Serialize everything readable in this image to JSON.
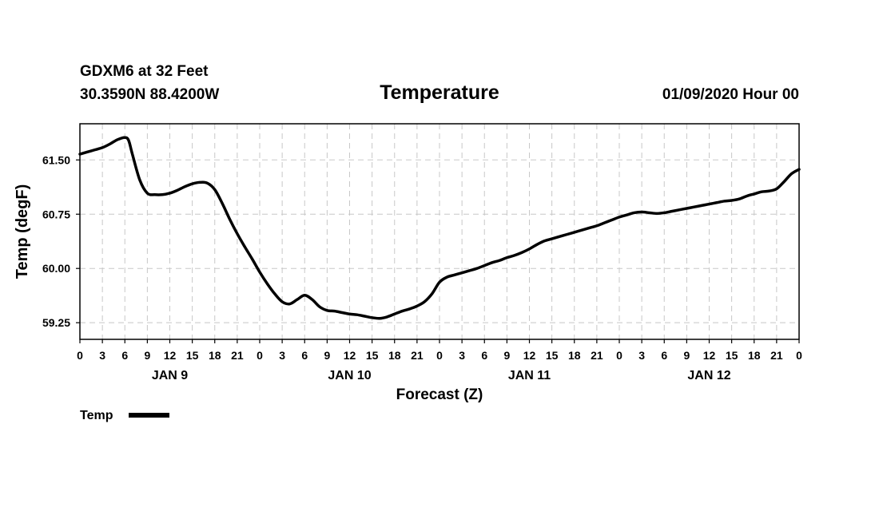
{
  "header": {
    "station_line": "GDXM6 at 32 Feet",
    "coords_line": "30.3590N 88.4200W",
    "title": "Temperature",
    "datetime": "01/09/2020 Hour 00"
  },
  "chart_data": {
    "type": "line",
    "title": "Temperature",
    "xlabel": "Forecast (Z)",
    "ylabel": "Temp (degF)",
    "xlim": [
      0,
      96
    ],
    "ylim": [
      59.02,
      62.0
    ],
    "grid": true,
    "legend_position": "bottom-left",
    "x_tick_labels": [
      "0",
      "3",
      "6",
      "9",
      "12",
      "15",
      "18",
      "21",
      "0",
      "3",
      "6",
      "9",
      "12",
      "15",
      "18",
      "21",
      "0",
      "3",
      "6",
      "9",
      "12",
      "15",
      "18",
      "21",
      "0",
      "3",
      "6",
      "9",
      "12",
      "15",
      "18",
      "21",
      "0"
    ],
    "x_tick_step_hours": 3,
    "y_ticks": [
      59.25,
      60.0,
      60.75,
      61.5
    ],
    "y_tick_labels": [
      "59.25",
      "60.00",
      "60.75",
      "61.50"
    ],
    "day_labels": [
      {
        "label": "JAN 9",
        "hour": 12
      },
      {
        "label": "JAN 10",
        "hour": 36
      },
      {
        "label": "JAN 11",
        "hour": 60
      },
      {
        "label": "JAN 12",
        "hour": 84
      }
    ],
    "series": [
      {
        "name": "Temp",
        "x": [
          0,
          1,
          2,
          3,
          4,
          5,
          6,
          6.5,
          7,
          8,
          9,
          10,
          11,
          12,
          13,
          14,
          15,
          16,
          17,
          18,
          19,
          20,
          21,
          22,
          23,
          24,
          25,
          26,
          27,
          28,
          29,
          30,
          31,
          32,
          33,
          34,
          35,
          36,
          37,
          38,
          39,
          40,
          41,
          42,
          43,
          44,
          45,
          46,
          47,
          48,
          49,
          50,
          51,
          52,
          53,
          54,
          55,
          56,
          57,
          58,
          59,
          60,
          61,
          62,
          63,
          64,
          65,
          66,
          67,
          68,
          69,
          70,
          71,
          72,
          73,
          74,
          75,
          76,
          77,
          78,
          79,
          80,
          81,
          82,
          83,
          84,
          85,
          86,
          87,
          88,
          89,
          90,
          91,
          92,
          93,
          94,
          95,
          96
        ],
        "values": [
          61.58,
          61.61,
          61.64,
          61.67,
          61.72,
          61.78,
          61.81,
          61.77,
          61.58,
          61.22,
          61.04,
          61.02,
          61.02,
          61.04,
          61.08,
          61.13,
          61.17,
          61.19,
          61.18,
          61.09,
          60.9,
          60.68,
          60.48,
          60.3,
          60.13,
          59.95,
          59.79,
          59.65,
          59.54,
          59.51,
          59.57,
          59.63,
          59.57,
          59.47,
          59.42,
          59.41,
          59.39,
          59.37,
          59.36,
          59.34,
          59.32,
          59.31,
          59.33,
          59.37,
          59.41,
          59.44,
          59.48,
          59.54,
          59.65,
          59.81,
          59.88,
          59.91,
          59.94,
          59.97,
          60.0,
          60.04,
          60.08,
          60.11,
          60.15,
          60.18,
          60.22,
          60.27,
          60.33,
          60.38,
          60.41,
          60.44,
          60.47,
          60.5,
          60.53,
          60.56,
          60.59,
          60.63,
          60.67,
          60.71,
          60.74,
          60.77,
          60.78,
          60.77,
          60.76,
          60.77,
          60.79,
          60.81,
          60.83,
          60.85,
          60.87,
          60.89,
          60.91,
          60.93,
          60.94,
          60.96,
          61.0,
          61.03,
          61.06,
          61.07,
          61.1,
          61.2,
          61.31,
          61.37
        ]
      }
    ]
  },
  "legend": {
    "label": "Temp"
  }
}
